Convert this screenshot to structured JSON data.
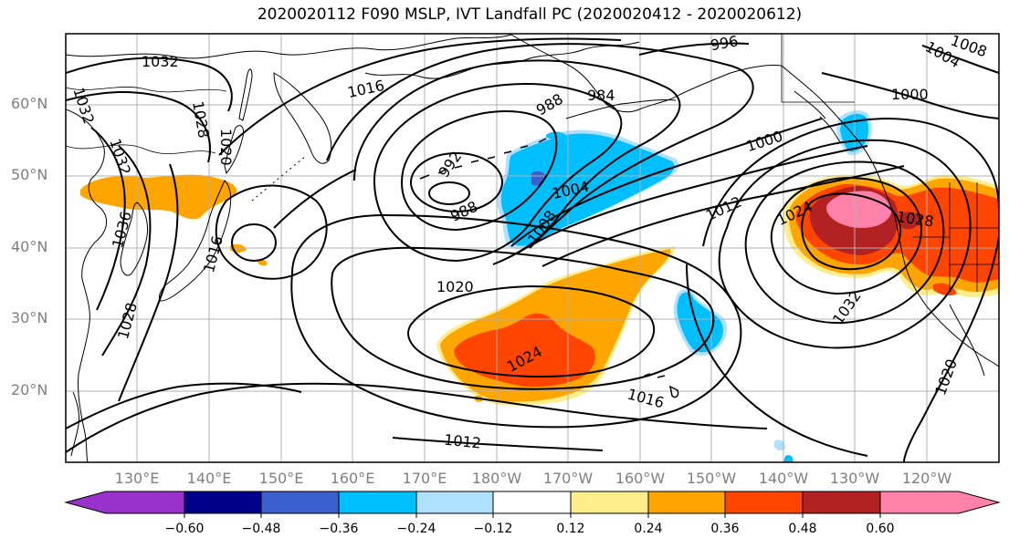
{
  "title": "2020020112 F090 MSLP, IVT Landfall PC (2020020412 - 2020020612)",
  "lat_labels": [
    "60°N",
    "50°N",
    "40°N",
    "30°N",
    "20°N"
  ],
  "lon_labels": [
    "130°E",
    "140°E",
    "150°E",
    "160°E",
    "170°E",
    "180°W",
    "170°W",
    "160°W",
    "150°W",
    "140°W",
    "130°W",
    "120°W"
  ],
  "contour_labels": {
    "c1032_nw": "1032",
    "c1032_w": "1032",
    "c1032_w2": "1032",
    "c1036": "1036",
    "c1028_w": "1028",
    "c1016_jp": "1016",
    "c1016_n": "1016",
    "c1020_jp": "1020",
    "c988": "988",
    "c984": "984",
    "c996": "996",
    "c992": "992",
    "c988b": "988",
    "c1004": "1004",
    "c1008": "1008",
    "c1000": "1000",
    "c1000_ne": "1000",
    "c1004_ne": "1004",
    "c1008_ne": "1008",
    "c1012": "1012",
    "c1024_e": "1024",
    "c1028_e": "1028",
    "c1032_e": "1032",
    "c1020_c": "1020",
    "c1024_c": "1024",
    "c1016_s": "1016",
    "c1012_s": "1012",
    "c1020_se": "1020"
  },
  "colorbar": {
    "colors": [
      "#9932CC",
      "#00008B",
      "#3A5FCD",
      "#00BFFF",
      "#B0E2FF",
      "#FFFFFF",
      "#FFEC8B",
      "#FFA500",
      "#FF4500",
      "#B22222",
      "#FF82AB"
    ],
    "tick_labels": [
      "−0.60",
      "−0.48",
      "−0.36",
      "−0.24",
      "−0.12",
      "0.12",
      "0.24",
      "0.36",
      "0.48",
      "0.60"
    ]
  }
}
